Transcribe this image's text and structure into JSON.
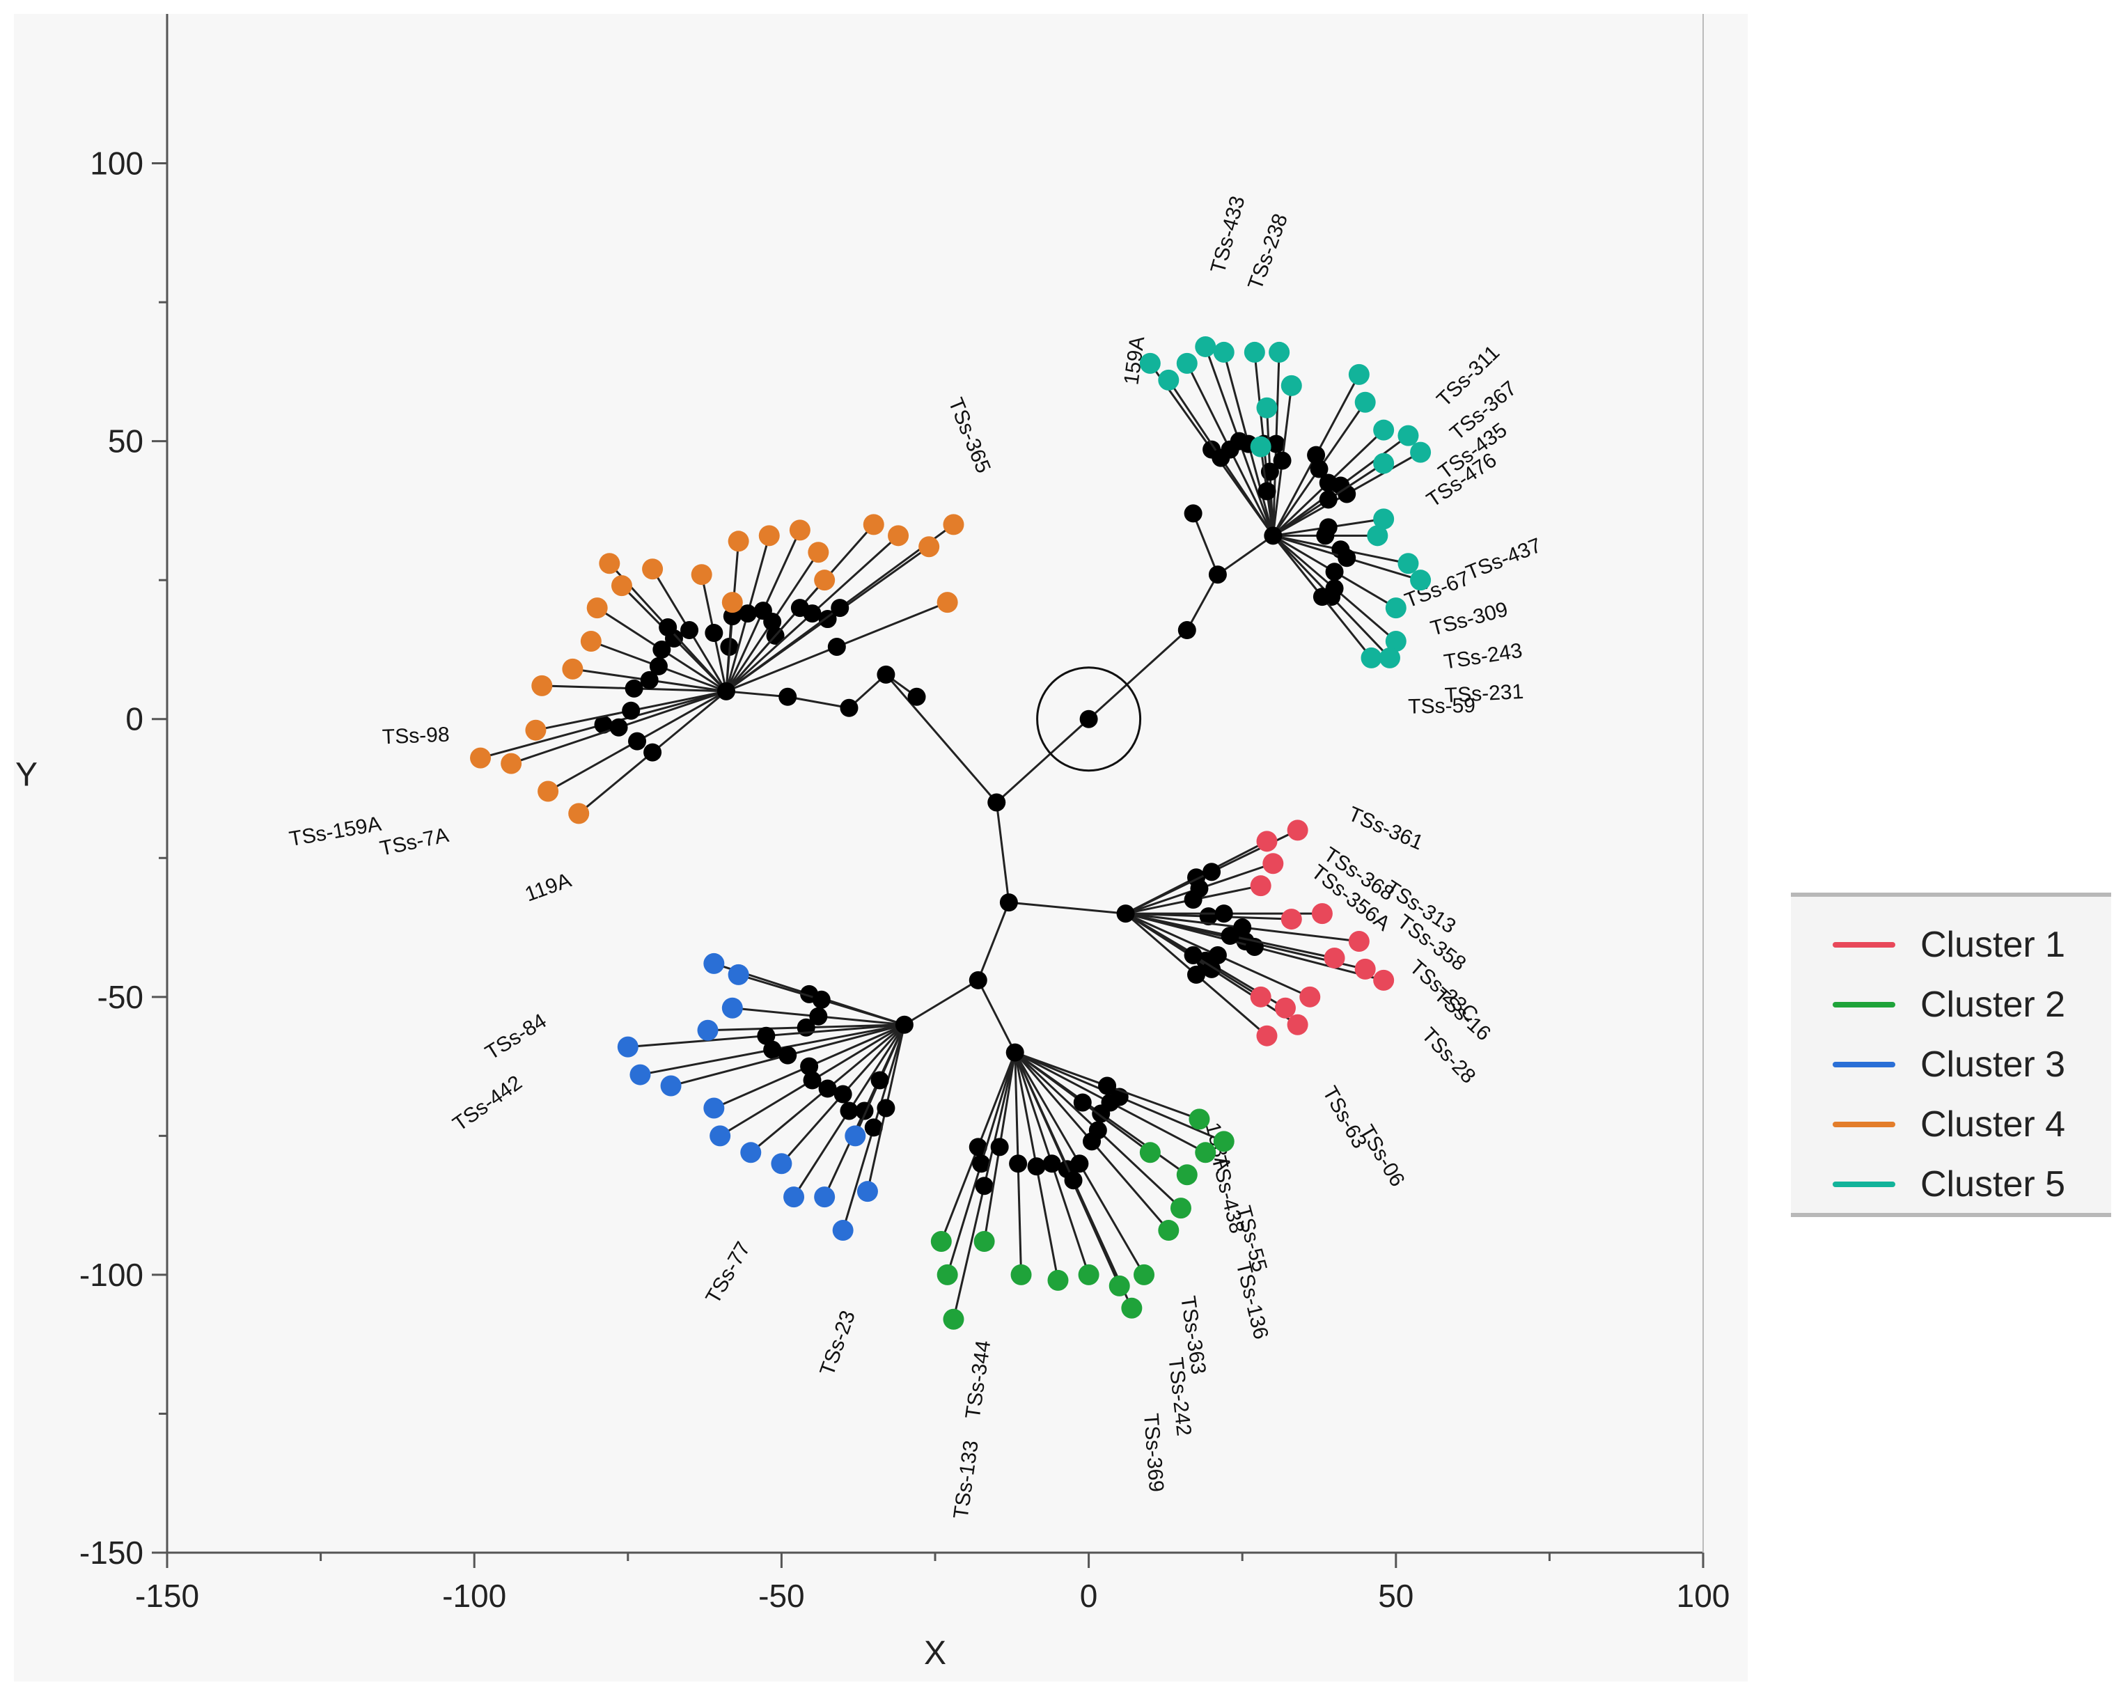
{
  "chart_data": {
    "type": "scatter",
    "title": "",
    "xlabel": "X",
    "ylabel": "Y",
    "xlim": [
      -150,
      100
    ],
    "ylim": [
      -150,
      125
    ],
    "x_ticks": [
      -150,
      -100,
      -50,
      0,
      50,
      100
    ],
    "y_ticks": [
      -150,
      -100,
      -50,
      0,
      50,
      100
    ],
    "grid": false,
    "legend_position": "right",
    "root_point": {
      "x": 0,
      "y": 0
    },
    "internal_nodes": [
      {
        "x": 0,
        "y": 0
      },
      {
        "x": -15,
        "y": -15
      },
      {
        "x": -13,
        "y": -33
      },
      {
        "x": -18,
        "y": -47
      },
      {
        "x": -28,
        "y": 4
      },
      {
        "x": -39,
        "y": 2
      },
      {
        "x": -49,
        "y": 4
      },
      {
        "x": -59,
        "y": 5
      },
      {
        "x": 16,
        "y": 16
      },
      {
        "x": 21,
        "y": 26
      },
      {
        "x": 30,
        "y": 33
      },
      {
        "x": 6,
        "y": -35
      },
      {
        "x": -30,
        "y": -55
      },
      {
        "x": -12,
        "y": -60
      },
      {
        "x": 17,
        "y": 37
      },
      {
        "x": -33,
        "y": 8
      }
    ],
    "series": [
      {
        "name": "Cluster 1",
        "color": "#e8485a",
        "points": [
          {
            "x": 29,
            "y": -22
          },
          {
            "x": 30,
            "y": -26
          },
          {
            "x": 34,
            "y": -20
          },
          {
            "x": 28,
            "y": -30
          },
          {
            "x": 33,
            "y": -36
          },
          {
            "x": 38,
            "y": -35
          },
          {
            "x": 44,
            "y": -40
          },
          {
            "x": 45,
            "y": -45
          },
          {
            "x": 48,
            "y": -47
          },
          {
            "x": 40,
            "y": -43
          },
          {
            "x": 36,
            "y": -50
          },
          {
            "x": 32,
            "y": -52
          },
          {
            "x": 29,
            "y": -57
          },
          {
            "x": 34,
            "y": -55
          },
          {
            "x": 28,
            "y": -50
          }
        ]
      },
      {
        "name": "Cluster 2",
        "color": "#1fa33a",
        "points": [
          {
            "x": -24,
            "y": -94
          },
          {
            "x": -23,
            "y": -100
          },
          {
            "x": -22,
            "y": -108
          },
          {
            "x": -17,
            "y": -94
          },
          {
            "x": -11,
            "y": -100
          },
          {
            "x": -5,
            "y": -101
          },
          {
            "x": 0,
            "y": -100
          },
          {
            "x": 5,
            "y": -102
          },
          {
            "x": 7,
            "y": -106
          },
          {
            "x": 9,
            "y": -100
          },
          {
            "x": 13,
            "y": -92
          },
          {
            "x": 15,
            "y": -88
          },
          {
            "x": 16,
            "y": -82
          },
          {
            "x": 19,
            "y": -78
          },
          {
            "x": 22,
            "y": -76
          },
          {
            "x": 18,
            "y": -72
          },
          {
            "x": 10,
            "y": -78
          }
        ]
      },
      {
        "name": "Cluster 3",
        "color": "#2a6fd6",
        "points": [
          {
            "x": -61,
            "y": -44
          },
          {
            "x": -57,
            "y": -46
          },
          {
            "x": -58,
            "y": -52
          },
          {
            "x": -62,
            "y": -56
          },
          {
            "x": -75,
            "y": -59
          },
          {
            "x": -73,
            "y": -64
          },
          {
            "x": -68,
            "y": -66
          },
          {
            "x": -61,
            "y": -70
          },
          {
            "x": -60,
            "y": -75
          },
          {
            "x": -55,
            "y": -78
          },
          {
            "x": -50,
            "y": -80
          },
          {
            "x": -48,
            "y": -86
          },
          {
            "x": -43,
            "y": -86
          },
          {
            "x": -40,
            "y": -92
          },
          {
            "x": -36,
            "y": -85
          },
          {
            "x": -38,
            "y": -75
          }
        ]
      },
      {
        "name": "Cluster 4",
        "color": "#e37d2a",
        "points": [
          {
            "x": -99,
            "y": -7
          },
          {
            "x": -94,
            "y": -8
          },
          {
            "x": -90,
            "y": -2
          },
          {
            "x": -88,
            "y": -13
          },
          {
            "x": -83,
            "y": -17
          },
          {
            "x": -89,
            "y": 6
          },
          {
            "x": -84,
            "y": 9
          },
          {
            "x": -81,
            "y": 14
          },
          {
            "x": -80,
            "y": 20
          },
          {
            "x": -76,
            "y": 24
          },
          {
            "x": -78,
            "y": 28
          },
          {
            "x": -71,
            "y": 27
          },
          {
            "x": -58,
            "y": 21
          },
          {
            "x": -63,
            "y": 26
          },
          {
            "x": -57,
            "y": 32
          },
          {
            "x": -52,
            "y": 33
          },
          {
            "x": -47,
            "y": 34
          },
          {
            "x": -44,
            "y": 30
          },
          {
            "x": -43,
            "y": 25
          },
          {
            "x": -35,
            "y": 35
          },
          {
            "x": -31,
            "y": 33
          },
          {
            "x": -26,
            "y": 31
          },
          {
            "x": -22,
            "y": 35
          },
          {
            "x": -23,
            "y": 21
          }
        ]
      },
      {
        "name": "Cluster 5",
        "color": "#12b39a",
        "points": [
          {
            "x": 10,
            "y": 64
          },
          {
            "x": 13,
            "y": 61
          },
          {
            "x": 16,
            "y": 64
          },
          {
            "x": 19,
            "y": 67
          },
          {
            "x": 22,
            "y": 66
          },
          {
            "x": 27,
            "y": 66
          },
          {
            "x": 31,
            "y": 66
          },
          {
            "x": 33,
            "y": 60
          },
          {
            "x": 29,
            "y": 56
          },
          {
            "x": 28,
            "y": 49
          },
          {
            "x": 44,
            "y": 62
          },
          {
            "x": 45,
            "y": 57
          },
          {
            "x": 48,
            "y": 52
          },
          {
            "x": 52,
            "y": 51
          },
          {
            "x": 54,
            "y": 48
          },
          {
            "x": 48,
            "y": 46
          },
          {
            "x": 48,
            "y": 36
          },
          {
            "x": 47,
            "y": 33
          },
          {
            "x": 52,
            "y": 28
          },
          {
            "x": 54,
            "y": 25
          },
          {
            "x": 50,
            "y": 20
          },
          {
            "x": 50,
            "y": 14
          },
          {
            "x": 49,
            "y": 11
          },
          {
            "x": 46,
            "y": 11
          }
        ]
      }
    ],
    "leaf_labels": [
      {
        "text": "TSs-361",
        "x": 42,
        "y": -18
      },
      {
        "text": "TSs-368",
        "x": 38,
        "y": -25
      },
      {
        "text": "TSs-356A",
        "x": 36,
        "y": -28
      },
      {
        "text": "TSs-313",
        "x": 48,
        "y": -31
      },
      {
        "text": "TSs-358",
        "x": 50,
        "y": -37
      },
      {
        "text": "TSs-23C",
        "x": 52,
        "y": -45
      },
      {
        "text": "TSs-16",
        "x": 56,
        "y": -50
      },
      {
        "text": "TSs-28",
        "x": 54,
        "y": -57
      },
      {
        "text": "TSs-63",
        "x": 38,
        "y": -67
      },
      {
        "text": "TSs-06",
        "x": 44,
        "y": -74
      },
      {
        "text": "138A",
        "x": 19,
        "y": -73
      },
      {
        "text": "TSs-438",
        "x": 20,
        "y": -79
      },
      {
        "text": "TSs-55",
        "x": 24,
        "y": -88
      },
      {
        "text": "TSs-136",
        "x": 24,
        "y": -98
      },
      {
        "text": "TSs-363",
        "x": 15,
        "y": -104
      },
      {
        "text": "TSs-242",
        "x": 13,
        "y": -115
      },
      {
        "text": "TSs-369",
        "x": 9,
        "y": -125
      },
      {
        "text": "TSs-133",
        "x": -18,
        "y": -130
      },
      {
        "text": "TSs-344",
        "x": -16,
        "y": -112
      },
      {
        "text": "TSs-23",
        "x": -38,
        "y": -107
      },
      {
        "text": "TSs-77",
        "x": -55,
        "y": -95
      },
      {
        "text": "TSs-442",
        "x": -92,
        "y": -66
      },
      {
        "text": "TSs-84",
        "x": -88,
        "y": -55
      },
      {
        "text": "TSs-98",
        "x": -104,
        "y": -4
      },
      {
        "text": "TSs-159A",
        "x": -115,
        "y": -20
      },
      {
        "text": "TSs-7A",
        "x": -104,
        "y": -22
      },
      {
        "text": "119A",
        "x": -84,
        "y": -30
      },
      {
        "text": "TSs-365",
        "x": -18,
        "y": 44
      },
      {
        "text": "TSs-238",
        "x": 28,
        "y": 77
      },
      {
        "text": "TSs-433",
        "x": 22,
        "y": 80
      },
      {
        "text": "159A",
        "x": 8,
        "y": 60
      },
      {
        "text": "TSs-311",
        "x": 58,
        "y": 56
      },
      {
        "text": "TSs-367",
        "x": 60,
        "y": 50
      },
      {
        "text": "TSs-435",
        "x": 58,
        "y": 43
      },
      {
        "text": "TSs-476",
        "x": 56,
        "y": 38
      },
      {
        "text": "TSs-437",
        "x": 62,
        "y": 25
      },
      {
        "text": "TSs-67",
        "x": 52,
        "y": 20
      },
      {
        "text": "TSs-309",
        "x": 56,
        "y": 15
      },
      {
        "text": "TSs-243",
        "x": 58,
        "y": 9
      },
      {
        "text": "TSs-231",
        "x": 58,
        "y": 3
      },
      {
        "text": "TSs-59",
        "x": 52,
        "y": 1
      }
    ]
  },
  "legend": {
    "items": [
      {
        "label": "Cluster 1",
        "color": "#e8485a"
      },
      {
        "label": "Cluster 2",
        "color": "#1fa33a"
      },
      {
        "label": "Cluster 3",
        "color": "#2a6fd6"
      },
      {
        "label": "Cluster 4",
        "color": "#e37d2a"
      },
      {
        "label": "Cluster 5",
        "color": "#12b39a"
      }
    ]
  }
}
